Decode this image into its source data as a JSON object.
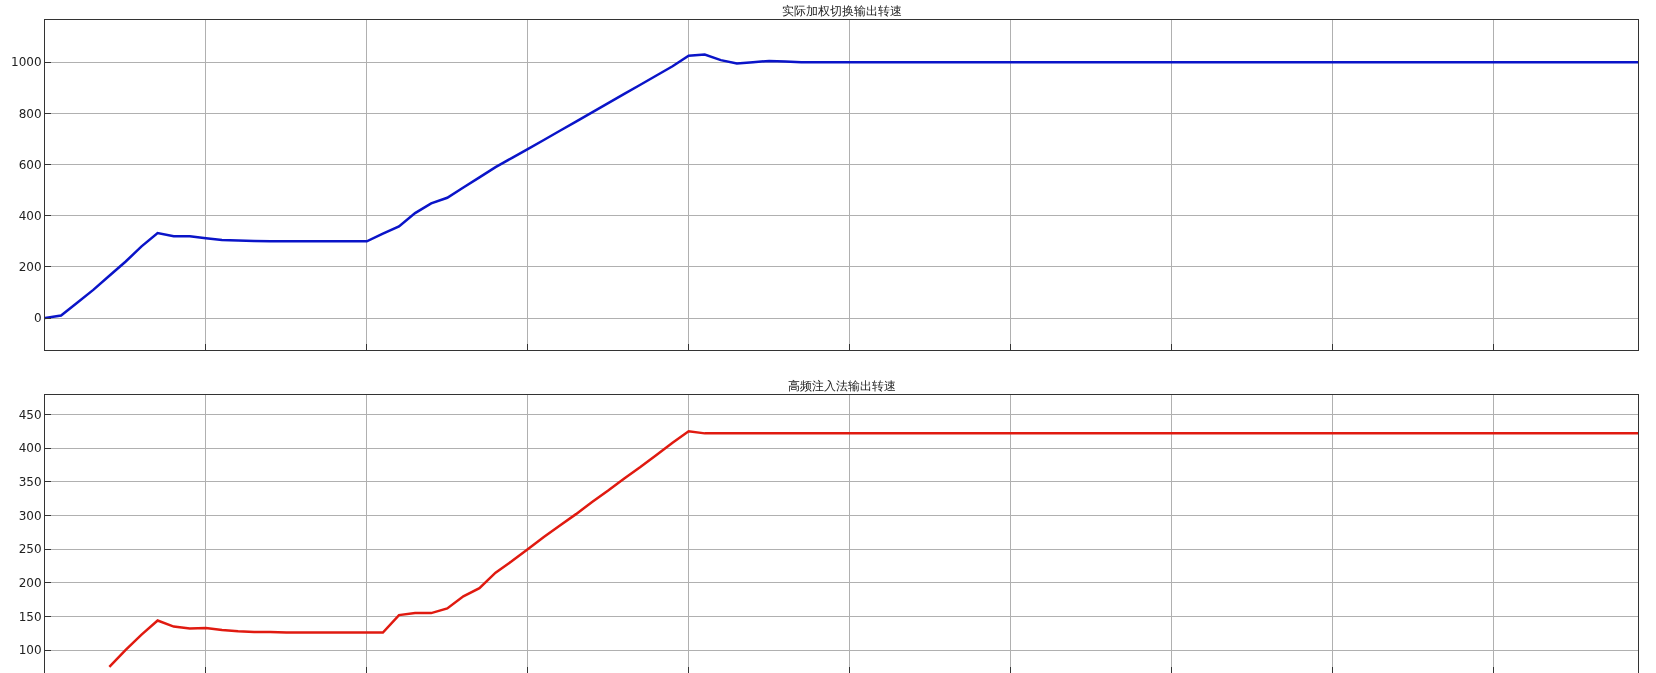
{
  "chart_data": [
    {
      "type": "line",
      "title": "实际加权切换输出转速",
      "categories": [
        null,
        null,
        null,
        null,
        null,
        null,
        null,
        null,
        null,
        null,
        null,
        null,
        null,
        null,
        null,
        null,
        null,
        null,
        null,
        null,
        null,
        null,
        null,
        null,
        null,
        null,
        null,
        null,
        null,
        null,
        null,
        null,
        null,
        null,
        null,
        null,
        null,
        null,
        null,
        null,
        null,
        null,
        null,
        null,
        null,
        null,
        null,
        null,
        null,
        null,
        null,
        null,
        null,
        null,
        null,
        null,
        null,
        null,
        null,
        null,
        null,
        null,
        null,
        null,
        null,
        null,
        null,
        null,
        null,
        null,
        null,
        null,
        null,
        null,
        null,
        null,
        null,
        null,
        null,
        null,
        null,
        null,
        null,
        null,
        null,
        null,
        null,
        null,
        null,
        null,
        null,
        null,
        null,
        null,
        null,
        null,
        null,
        null,
        null,
        null
      ],
      "series": [
        {
          "color": "#0a14c8",
          "values": [
            0,
            10,
            60,
            110,
            165,
            220,
            280,
            332,
            320,
            320,
            312,
            305,
            303,
            301,
            300,
            300,
            300,
            300,
            300,
            300,
            300,
            330,
            358,
            410,
            448,
            470,
            510,
            550,
            590,
            625,
            660,
            696,
            732,
            768,
            804,
            840,
            876,
            912,
            948,
            984,
            1025,
            1030,
            1008,
            995,
            1000,
            1005,
            1003,
            1000,
            1000,
            1000,
            1000,
            1000,
            1000,
            1000,
            1000,
            1000,
            1000,
            1000,
            1000,
            1000,
            1000,
            1000,
            1000,
            1000,
            1000,
            1000,
            1000,
            1000,
            1000,
            1000,
            1000,
            1000,
            1000,
            1000,
            1000,
            1000,
            1000,
            1000,
            1000,
            1000,
            1000,
            1000,
            1000,
            1000,
            1000,
            1000,
            1000,
            1000,
            1000,
            1000,
            1000,
            1000,
            1000,
            1000,
            1000,
            1000,
            1000,
            1000,
            1000,
            1000
          ]
        }
      ],
      "ylim": [
        -125,
        1165
      ],
      "yticks": [
        0,
        200,
        400,
        600,
        800,
        1000
      ],
      "grid": true,
      "tick_labels": "y"
    },
    {
      "type": "line",
      "title": "高频注入法输出转速",
      "categories": [
        null,
        null,
        null,
        null,
        null,
        null,
        null,
        null,
        null,
        null,
        null,
        null,
        null,
        null,
        null,
        null,
        null,
        null,
        null,
        null,
        null,
        null,
        null,
        null,
        null,
        null,
        null,
        null,
        null,
        null,
        null,
        null,
        null,
        null,
        null,
        null,
        null,
        null,
        null,
        null,
        null,
        null,
        null,
        null,
        null,
        null,
        null,
        null,
        null,
        null,
        null,
        null,
        null,
        null,
        null,
        null,
        null,
        null,
        null,
        null,
        null,
        null,
        null,
        null,
        null,
        null,
        null,
        null,
        null,
        null,
        null,
        null,
        null,
        null,
        null,
        null,
        null,
        null,
        null,
        null,
        null,
        null,
        null,
        null,
        null,
        null,
        null,
        null,
        null,
        null,
        null,
        null,
        null,
        null,
        null,
        null,
        null,
        null,
        null,
        null
      ],
      "series": [
        {
          "color": "#e01a10",
          "values": [
            null,
            null,
            null,
            null,
            75,
            100,
            123,
            144,
            135,
            132,
            133,
            130,
            128,
            127,
            127,
            126,
            126,
            126,
            126,
            126,
            126,
            126,
            152,
            155,
            155,
            162,
            180,
            192,
            215,
            232,
            250,
            268,
            285,
            302,
            320,
            337,
            355,
            372,
            390,
            408,
            425,
            422,
            422,
            422,
            422,
            422,
            422,
            422,
            422,
            422,
            422,
            422,
            422,
            422,
            422,
            422,
            422,
            422,
            422,
            422,
            422,
            422,
            422,
            422,
            422,
            422,
            422,
            422,
            422,
            422,
            422,
            422,
            422,
            422,
            422,
            422,
            422,
            422,
            422,
            422,
            422,
            422,
            422,
            422,
            422,
            422,
            422,
            422,
            422,
            422,
            422,
            422,
            422,
            422,
            422,
            422,
            422,
            422,
            422,
            422
          ]
        }
      ],
      "ylim": [
        66,
        479
      ],
      "yticks": [
        100,
        150,
        200,
        250,
        300,
        350,
        400,
        450
      ],
      "grid": true,
      "tick_labels": "y"
    }
  ]
}
